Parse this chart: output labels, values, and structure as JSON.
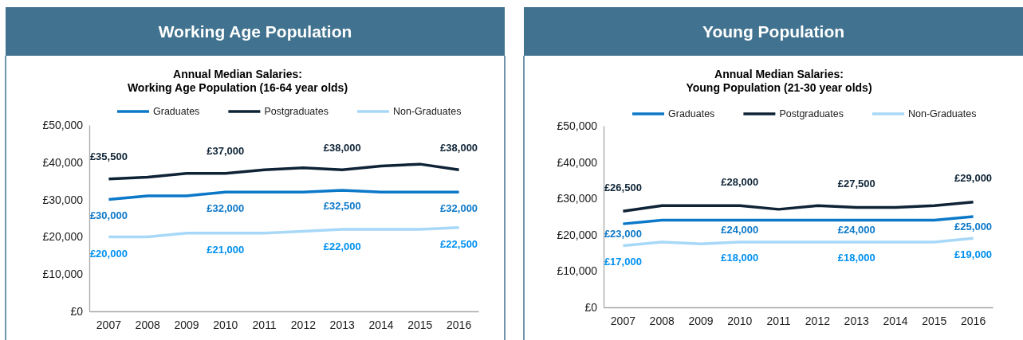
{
  "chart_data": [
    {
      "type": "line",
      "title": "Working Age Population",
      "subtitle": "Annual Median Salaries:\nWorking Age Population (16-64 year olds)",
      "categories": [
        "2007",
        "2008",
        "2009",
        "2010",
        "2011",
        "2012",
        "2013",
        "2014",
        "2015",
        "2016"
      ],
      "series": [
        {
          "name": "Graduates",
          "color": "#0c78c8",
          "values": [
            30000,
            31000,
            31000,
            32000,
            32000,
            32000,
            32500,
            32000,
            32000,
            32000
          ],
          "value_labels": [
            "£30,000",
            null,
            null,
            "£32,000",
            null,
            null,
            "£32,500",
            null,
            null,
            "£32,000"
          ]
        },
        {
          "name": "Postgraduates",
          "color": "#0e2336",
          "values": [
            35500,
            36000,
            37000,
            37000,
            38000,
            38500,
            38000,
            39000,
            39500,
            38000
          ],
          "value_labels": [
            "£35,500",
            null,
            null,
            "£37,000",
            null,
            null,
            "£38,000",
            null,
            null,
            "£38,000"
          ]
        },
        {
          "name": "Non-Graduates",
          "color": "#a8d8f8",
          "values": [
            20000,
            20000,
            21000,
            21000,
            21000,
            21500,
            22000,
            22000,
            22000,
            22500
          ],
          "value_labels": [
            "£20,000",
            null,
            null,
            "£21,000",
            null,
            null,
            "£22,000",
            null,
            null,
            "£22,500"
          ]
        }
      ],
      "ylim": [
        0,
        50000
      ],
      "yticks": [
        {
          "value": 0,
          "label": "£0"
        },
        {
          "value": 10000,
          "label": "£10,000"
        },
        {
          "value": 20000,
          "label": "£20,000"
        },
        {
          "value": 30000,
          "label": "£30,000"
        },
        {
          "value": 40000,
          "label": "£40,000"
        },
        {
          "value": 50000,
          "label": "£50,000"
        }
      ],
      "legend": "top"
    },
    {
      "type": "line",
      "title": "Young Population",
      "subtitle": "Annual Median Salaries:\nYoung Population (21-30 year olds)",
      "categories": [
        "2007",
        "2008",
        "2009",
        "2010",
        "2011",
        "2012",
        "2013",
        "2014",
        "2015",
        "2016"
      ],
      "series": [
        {
          "name": "Graduates",
          "color": "#0c78c8",
          "values": [
            23000,
            24000,
            24000,
            24000,
            24000,
            24000,
            24000,
            24000,
            24000,
            25000
          ],
          "value_labels": [
            "£23,000",
            null,
            null,
            "£24,000",
            null,
            null,
            "£24,000",
            null,
            null,
            "£25,000"
          ]
        },
        {
          "name": "Postgraduates",
          "color": "#0e2336",
          "values": [
            26500,
            28000,
            28000,
            28000,
            27000,
            28000,
            27500,
            27500,
            28000,
            29000
          ],
          "value_labels": [
            "£26,500",
            null,
            null,
            "£28,000",
            null,
            null,
            "£27,500",
            null,
            null,
            "£29,000"
          ]
        },
        {
          "name": "Non-Graduates",
          "color": "#a8d8f8",
          "values": [
            17000,
            18000,
            17500,
            18000,
            18000,
            18000,
            18000,
            18000,
            18000,
            19000
          ],
          "value_labels": [
            "£17,000",
            null,
            null,
            "£18,000",
            null,
            null,
            "£18,000",
            null,
            null,
            "£19,000"
          ]
        }
      ],
      "ylim": [
        0,
        50000
      ],
      "yticks": [
        {
          "value": 0,
          "label": "£0"
        },
        {
          "value": 10000,
          "label": "£10,000"
        },
        {
          "value": 20000,
          "label": "£20,000"
        },
        {
          "value": 30000,
          "label": "£30,000"
        },
        {
          "value": 40000,
          "label": "£40,000"
        },
        {
          "value": 50000,
          "label": "£50,000"
        }
      ],
      "legend": "top"
    }
  ]
}
